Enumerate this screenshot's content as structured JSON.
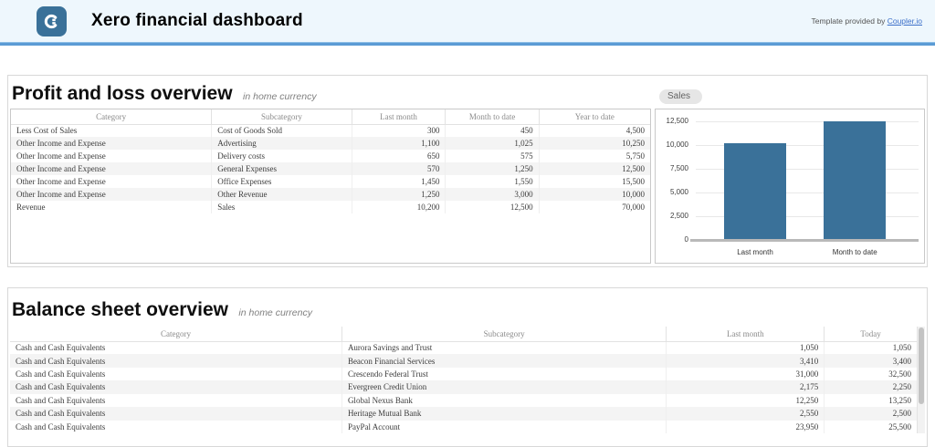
{
  "header": {
    "title": "Xero financial dashboard",
    "template_note": "Template provided by ",
    "template_link": "Coupler.io",
    "logo": "coupler-logo-icon"
  },
  "colors": {
    "brand_blue": "#3a7199",
    "divider_blue": "#5b9bd5",
    "header_bg": "#eef7fd",
    "bar_color": "#3a7199",
    "link_color": "#3b6fc9",
    "row_stripe": "#f4f4f4"
  },
  "pnl": {
    "title": "Profit and loss overview",
    "subtitle": "in home currency",
    "columns": [
      "Category",
      "Subcategory",
      "Last month",
      "Month to date",
      "Year to date"
    ],
    "rows": [
      [
        "Less Cost of Sales",
        "Cost of Goods Sold",
        "300",
        "450",
        "4,500"
      ],
      [
        "Other Income and Expense",
        "Advertising",
        "1,100",
        "1,025",
        "10,250"
      ],
      [
        "Other Income and Expense",
        "Delivery costs",
        "650",
        "575",
        "5,750"
      ],
      [
        "Other Income and Expense",
        "General Expenses",
        "570",
        "1,250",
        "12,500"
      ],
      [
        "Other Income and Expense",
        "Office Expenses",
        "1,450",
        "1,550",
        "15,500"
      ],
      [
        "Other Income and Expense",
        "Other Revenue",
        "1,250",
        "3,000",
        "10,000"
      ],
      [
        "Revenue",
        "Sales",
        "10,200",
        "12,500",
        "70,000"
      ]
    ]
  },
  "chart_data": {
    "type": "bar",
    "title": "Sales",
    "categories": [
      "Last month",
      "Month to date"
    ],
    "values": [
      10200,
      12500
    ],
    "ylim": [
      0,
      12500
    ],
    "yticks": [
      0,
      2500,
      5000,
      7500,
      10000,
      12500
    ],
    "grid": true,
    "legend": "none",
    "bar_color": "#3a7199"
  },
  "balance": {
    "title": "Balance sheet overview",
    "subtitle": "in home currency",
    "columns": [
      "Category",
      "Subcategory",
      "Last month",
      "Today"
    ],
    "rows": [
      [
        "Cash and Cash Equivalents",
        "Aurora Savings and Trust",
        "1,050",
        "1,050"
      ],
      [
        "Cash and Cash Equivalents",
        "Beacon Financial Services",
        "3,410",
        "3,400"
      ],
      [
        "Cash and Cash Equivalents",
        "Crescendo Federal Trust",
        "31,000",
        "32,500"
      ],
      [
        "Cash and Cash Equivalents",
        "Evergreen Credit Union",
        "2,175",
        "2,250"
      ],
      [
        "Cash and Cash Equivalents",
        "Global Nexus Bank",
        "12,250",
        "13,250"
      ],
      [
        "Cash and Cash Equivalents",
        "Heritage Mutual Bank",
        "2,550",
        "2,500"
      ],
      [
        "Cash and Cash Equivalents",
        "PayPal Account",
        "23,950",
        "25,500"
      ]
    ]
  }
}
